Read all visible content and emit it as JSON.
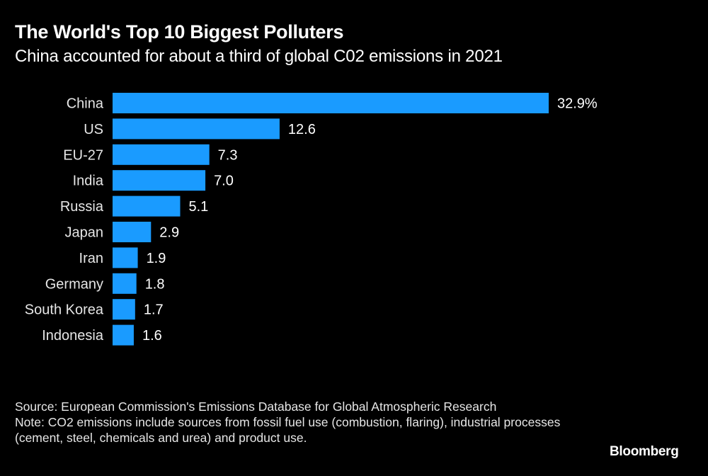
{
  "header": {
    "title": "The World's Top 10 Biggest Polluters",
    "subtitle": "China accounted for about a third of global C02 emissions in 2021"
  },
  "footer": {
    "source": "Source: European Commission's Emissions Database for Global Atmospheric Research",
    "note": "Note: CO2 emissions include sources from fossil fuel use (combustion, flaring), industrial processes (cement, steel, chemicals and urea) and product use.",
    "brand": "Bloomberg"
  },
  "colors": {
    "bar": "#1a9bff",
    "background": "#000000",
    "text": "#ffffff"
  },
  "chart_data": {
    "type": "bar",
    "orientation": "horizontal",
    "title": "The World's Top 10 Biggest Polluters",
    "subtitle": "China accounted for about a third of global C02 emissions in 2021",
    "xlabel": "",
    "ylabel": "",
    "unit": "% of global CO2 emissions",
    "categories": [
      "China",
      "US",
      "EU-27",
      "India",
      "Russia",
      "Japan",
      "Iran",
      "Germany",
      "South Korea",
      "Indonesia"
    ],
    "values": [
      32.9,
      12.6,
      7.3,
      7.0,
      5.1,
      2.9,
      1.9,
      1.8,
      1.7,
      1.6
    ],
    "value_labels": [
      "32.9%",
      "12.6",
      "7.3",
      "7.0",
      "5.1",
      "2.9",
      "1.9",
      "1.8",
      "1.7",
      "1.6"
    ],
    "xlim": [
      0,
      32.9
    ],
    "grid": false,
    "legend": "none"
  }
}
